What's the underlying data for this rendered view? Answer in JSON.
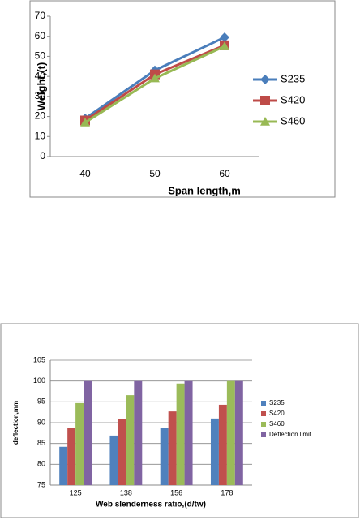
{
  "chart_data": [
    {
      "type": "line",
      "x_label": "Span length,m",
      "y_label": "Weight,(t)",
      "categories": [
        "40",
        "50",
        "60"
      ],
      "series": [
        {
          "name": "S235",
          "color": "#4a7ebb",
          "marker": "diamond",
          "values": [
            19,
            43,
            59.5
          ]
        },
        {
          "name": "S420",
          "color": "#be4b48",
          "marker": "square",
          "values": [
            18,
            41,
            55.5
          ]
        },
        {
          "name": "S460",
          "color": "#98b954",
          "marker": "triangle",
          "values": [
            17,
            39,
            55
          ]
        }
      ],
      "ylim": [
        0,
        70
      ],
      "yticks": [
        0,
        10,
        20,
        30,
        40,
        50,
        60,
        70
      ],
      "grid": false,
      "legend": "right"
    },
    {
      "type": "bar",
      "x_label": "Web slenderness ratio,(d/tw)",
      "y_label": "deflection,mm",
      "categories": [
        "125",
        "138",
        "156",
        "178"
      ],
      "series": [
        {
          "name": "S235",
          "color": "#4f81bd",
          "values": [
            84.2,
            86.9,
            88.8,
            91
          ]
        },
        {
          "name": "S420",
          "color": "#c0504d",
          "values": [
            88.8,
            90.8,
            92.7,
            94.3
          ]
        },
        {
          "name": "S460",
          "color": "#9bbb59",
          "values": [
            94.7,
            96.6,
            99.4,
            100
          ]
        },
        {
          "name": "Deflection limit",
          "color": "#8064a2",
          "values": [
            100,
            100,
            100,
            100
          ]
        }
      ],
      "ylim": [
        75,
        105
      ],
      "yticks": [
        75,
        80,
        85,
        90,
        95,
        100,
        105
      ],
      "grid": true,
      "legend": "right"
    }
  ]
}
